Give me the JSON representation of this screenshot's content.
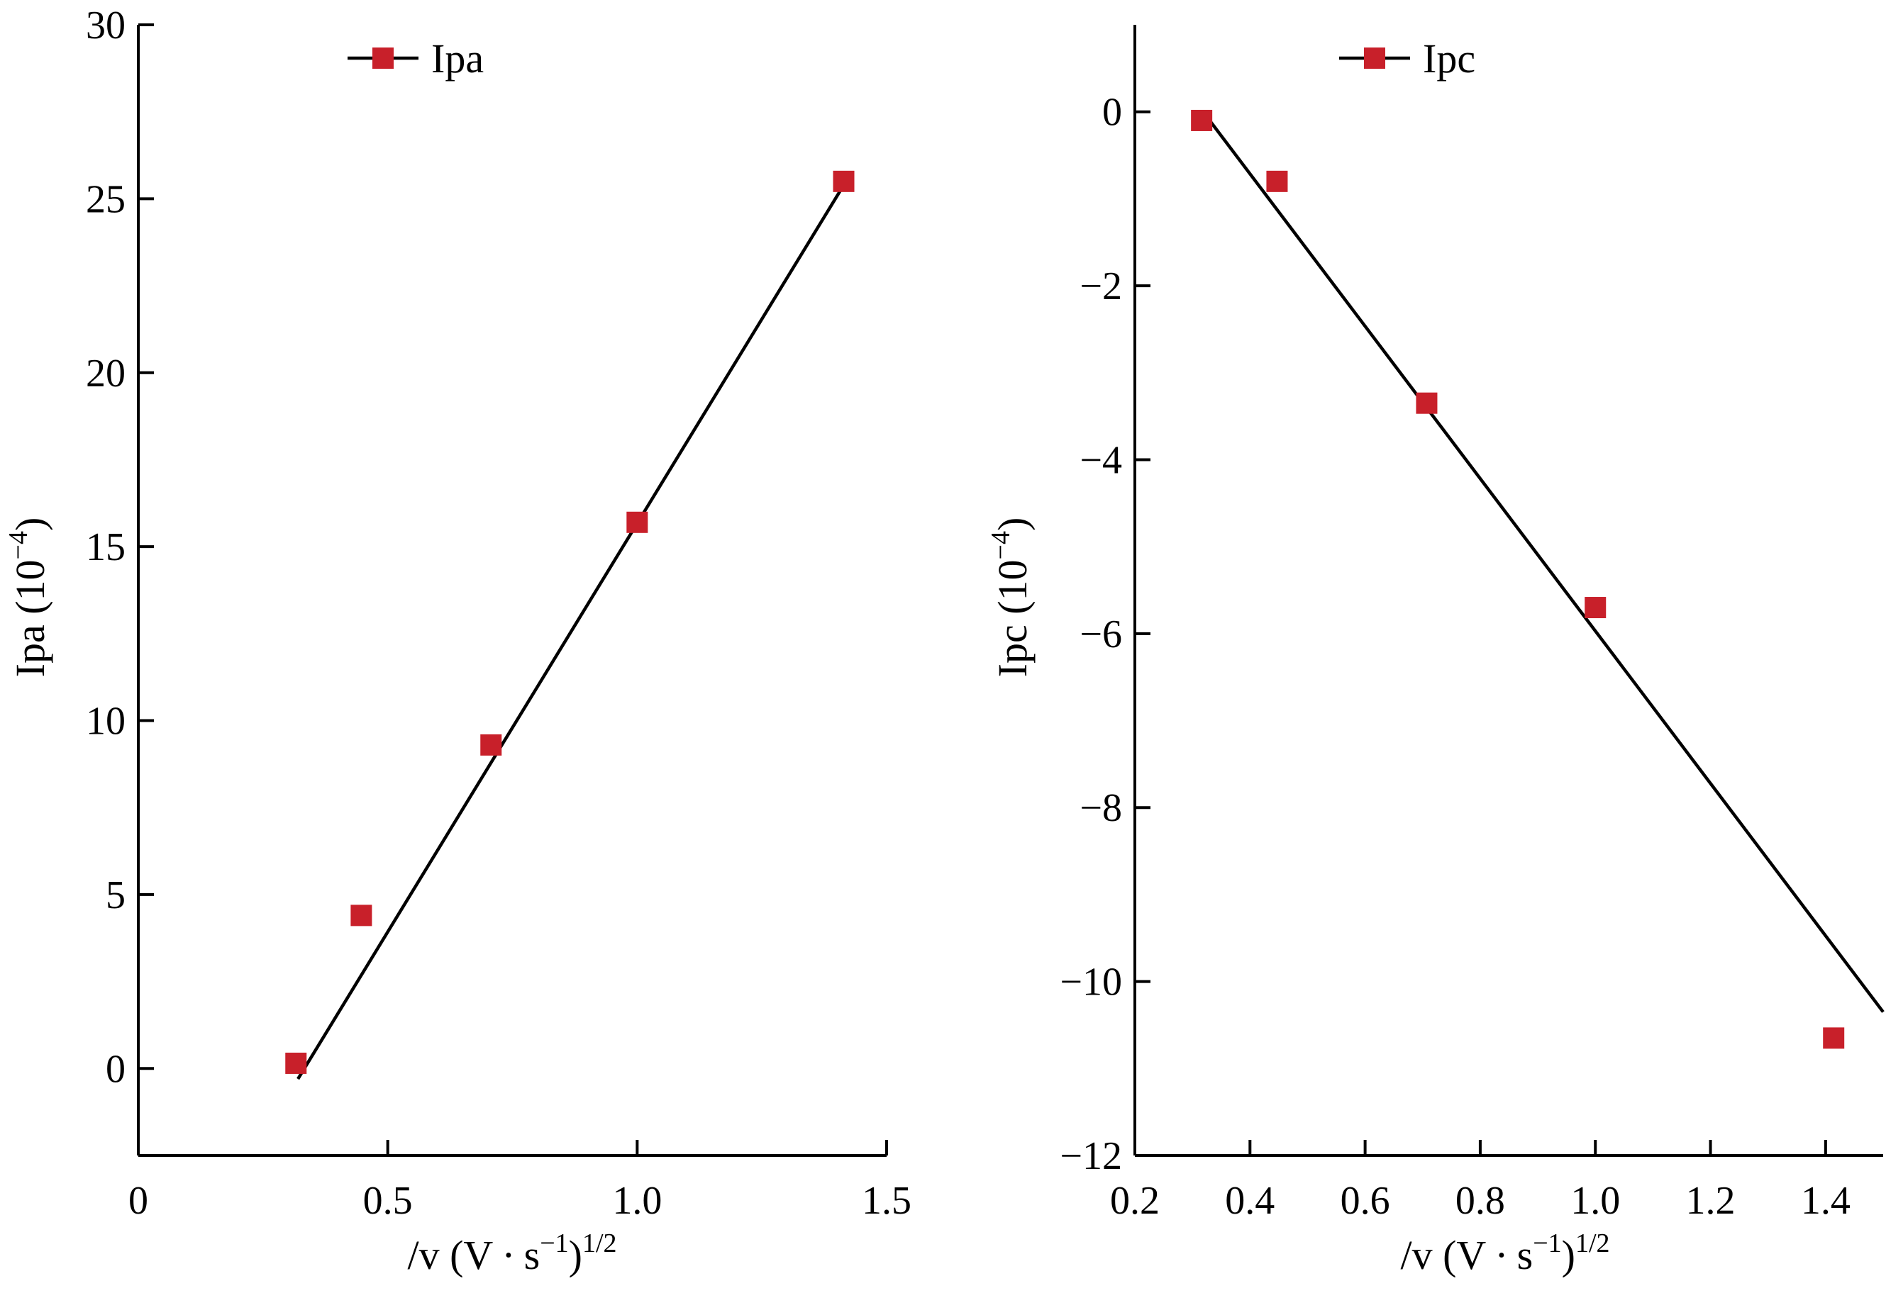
{
  "chart_data": [
    {
      "type": "scatter",
      "title": "",
      "xlabel_parts": [
        "/v (V",
        "·",
        "s",
        "−1",
        ")",
        "1/2"
      ],
      "ylabel_parts": [
        "Ipa (10",
        "−4",
        ")"
      ],
      "xlim": [
        0,
        1.5
      ],
      "ylim": [
        -2.5,
        30
      ],
      "x_ticks": [
        0,
        0.5,
        1.0,
        1.5
      ],
      "x_tick_labels": [
        "0",
        "0.5",
        "1.0",
        "1.5"
      ],
      "y_ticks": [
        0,
        5,
        10,
        15,
        20,
        25,
        30
      ],
      "y_tick_labels": [
        "0",
        "5",
        "10",
        "15",
        "20",
        "25",
        "30"
      ],
      "grid": false,
      "legend_position": "top-left",
      "series": [
        {
          "name": "Ipa",
          "color": "#c8202a",
          "marker": "square",
          "x": [
            0.316,
            0.447,
            0.707,
            1.0,
            1.414
          ],
          "y": [
            0.15,
            4.4,
            9.3,
            15.7,
            25.5
          ],
          "fit_line": {
            "x": [
              0.32,
              1.41
            ],
            "y": [
              -0.3,
              25.3
            ]
          }
        }
      ]
    },
    {
      "type": "scatter",
      "title": "",
      "xlabel_parts": [
        "/v (V",
        "·",
        "s",
        "−1",
        ")",
        "1/2"
      ],
      "ylabel_parts": [
        "Ipc (10",
        "−4",
        ")"
      ],
      "xlim": [
        0.2,
        1.5
      ],
      "ylim": [
        -12,
        1
      ],
      "x_ticks": [
        0.2,
        0.4,
        0.6,
        0.8,
        1.0,
        1.2,
        1.4
      ],
      "x_tick_labels": [
        "0.2",
        "0.4",
        "0.6",
        "0.8",
        "1.0",
        "1.2",
        "1.4"
      ],
      "y_ticks": [
        0,
        -2,
        -4,
        -6,
        -8,
        -10,
        -12
      ],
      "y_tick_labels": [
        "0",
        "−2",
        "−4",
        "−6",
        "−8",
        "−10",
        "−12"
      ],
      "grid": false,
      "legend_position": "top-left",
      "series": [
        {
          "name": "Ipc",
          "color": "#c8202a",
          "marker": "square",
          "x": [
            0.316,
            0.447,
            0.707,
            1.0,
            1.414
          ],
          "y": [
            -0.1,
            -0.8,
            -3.35,
            -5.7,
            -10.65
          ],
          "fit_line": {
            "x": [
              0.33,
              1.5
            ],
            "y": [
              -0.1,
              -10.35
            ]
          }
        }
      ]
    }
  ]
}
